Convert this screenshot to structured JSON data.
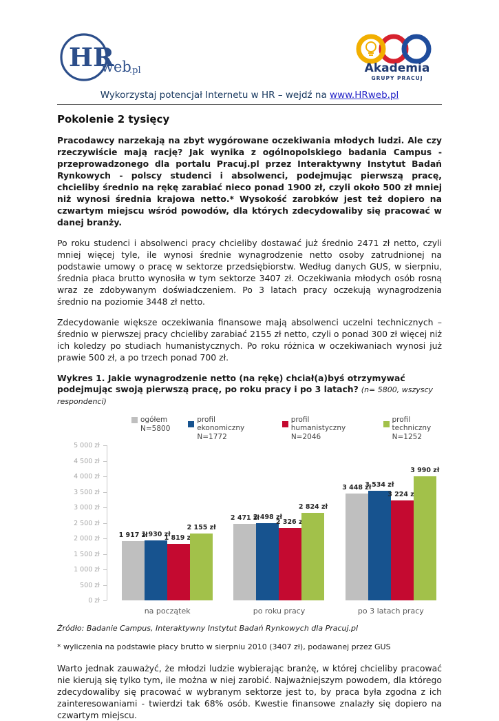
{
  "header": {
    "hrweb_logo": {
      "hr": "HR",
      "suffix": "web",
      "tld": ".pl"
    },
    "akademia_logo": {
      "title": "Akademia",
      "subtitle": "GRUPY PRACUJ"
    },
    "tagline": {
      "text": "Wykorzystaj potencjał Internetu w HR – wejdź na ",
      "link": "www.HRweb.pl"
    }
  },
  "title": "Pokolenie 2 tysięcy",
  "paragraphs": {
    "lead": "Pracodawcy narzekają na zbyt wygórowane oczekiwania młodych ludzi. Ale czy rzeczywiście mają rację? Jak wynika z ogólnopolskiego badania Campus - przeprowadzonego dla portalu Pracuj.pl przez Interaktywny Instytut Badań Rynkowych - polscy studenci i absolwenci, podejmując pierwszą pracę, chcieliby średnio na rękę zarabiać nieco ponad 1900 zł, czyli około 500 zł mniej niż wynosi średnia krajowa netto.* Wysokość zarobków jest też dopiero na czwartym miejscu wśród powodów, dla których zdecydowaliby się pracować w danej branży.",
    "p2": "Po roku studenci i absolwenci pracy chcieliby dostawać już średnio 2471 zł netto, czyli mniej więcej tyle, ile wynosi średnie wynagrodzenie netto osoby zatrudnionej na podstawie umowy o pracę w sektorze przedsiębiorstw. Według danych GUS, w sierpniu, średnia płaca brutto wynosiła w tym sektorze 3407 zł. Oczekiwania młodych osób rosną wraz ze zdobywanym doświadczeniem. Po 3 latach pracy oczekują wynagrodzenia średnio na poziomie 3448 zł netto.",
    "p3": "Zdecydowanie większe oczekiwania finansowe mają absolwenci uczelni technicznych – średnio w pierwszej pracy chcieliby zarabiać 2155 zł netto, czyli o ponad 300 zł więcej niż ich koledzy po studiach humanistycznych. Po roku różnica w oczekiwaniach wynosi już prawie 500 zł, a po trzech ponad 700 zł.",
    "closing": "Warto jednak zauważyć, że młodzi ludzie wybierając branżę, w której chcieliby pracować nie kierują się tylko tym, ile można w niej zarobić. Najważniejszym powodem, dla którego zdecydowaliby się pracować w wybranym sektorze jest to, by praca była zgodna z ich zainteresowaniami - twierdzi tak 68% osób. Kwestie finansowe znalazły się dopiero na czwartym miejscu."
  },
  "chart_caption": {
    "bold": "Wykres 1. Jakie wynagrodzenie netto (na rękę) chciał(a)byś otrzymywać podejmując swoją pierwszą pracę, po roku pracy i po 3 latach?",
    "italic": "(n= 5800, wszyscy respondenci)"
  },
  "source": "Źródło: Badanie Campus, Interaktywny Instytut Badań Rynkowych dla Pracuj.pl",
  "footnote": "* wyliczenia na podstawie płacy brutto w sierpniu 2010 (3407 zł), podawanej przez GUS",
  "chart_data": {
    "type": "bar",
    "title": "",
    "xlabel": "",
    "ylabel": "",
    "categories": [
      "na początek",
      "po roku pracy",
      "po 3 latach pracy"
    ],
    "series": [
      {
        "name": "ogółem",
        "n": "N=5800",
        "color": "#bfbfbf",
        "values": [
          1917,
          2471,
          3448
        ],
        "labels": [
          "1 917 zł",
          "2 471 zł",
          "3 448 zł"
        ]
      },
      {
        "name": "profil ekonomiczny",
        "n": "N=1772",
        "color": "#17538f",
        "values": [
          1930,
          2498,
          3534
        ],
        "labels": [
          "1 930 zł",
          "2 498 zł",
          "3 534 zł"
        ]
      },
      {
        "name": "profil humanistyczny",
        "n": "N=2046",
        "color": "#c40a30",
        "values": [
          1819,
          2326,
          3224
        ],
        "labels": [
          "1 819 zł",
          "2 326 zł",
          "3 224 zł"
        ]
      },
      {
        "name": "profil techniczny",
        "n": "N=1252",
        "color": "#a2c14a",
        "values": [
          2155,
          2824,
          3990
        ],
        "labels": [
          "2 155 zł",
          "2 824 zł",
          "3 990 zł"
        ]
      }
    ],
    "ylim": [
      0,
      5000
    ],
    "ytick_step": 500,
    "ytick_labels": [
      "5 000 zł",
      "4 500 zł",
      "4 000 zł",
      "3 500 zł",
      "3 000 zł",
      "2 500 zł",
      "2 000 zł",
      "1 500 zł",
      "1 000 zł",
      "500 zł",
      "0 zł"
    ],
    "legend_position": "top",
    "grid": false
  },
  "colors": {
    "navy_text": "#17375e",
    "link_blue": "#2323c8",
    "logo_blue": "#2c4e8a",
    "akademia_yellow": "#f2af00",
    "akademia_red": "#d6212e",
    "akademia_blue": "#1f4c9c"
  }
}
